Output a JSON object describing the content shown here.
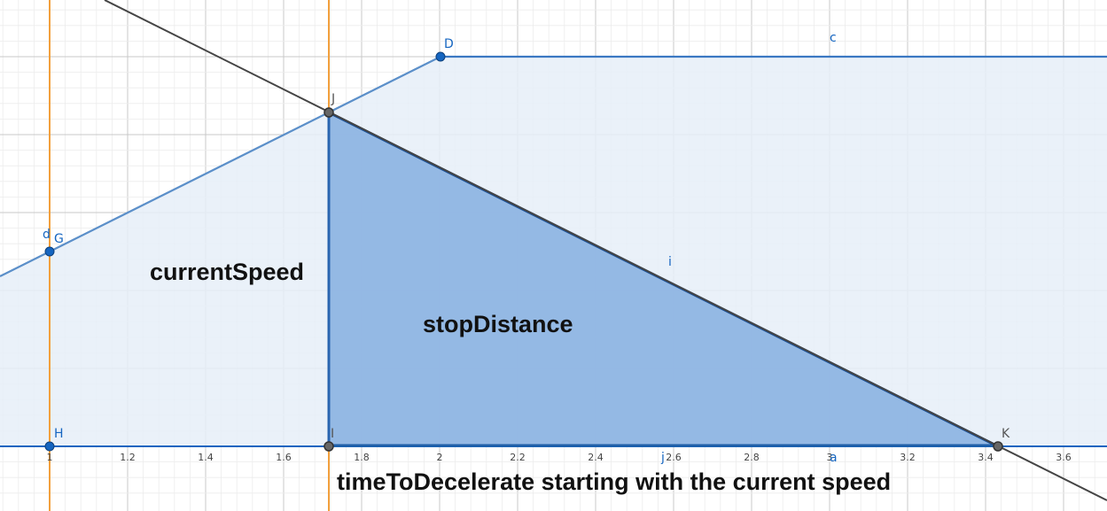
{
  "colors": {
    "accent_blue": "#1565c0",
    "line_blue": "#5b8fc9",
    "fill_light": "#e6eef8",
    "fill_dark": "#8fb5e3",
    "orange": "#f2a03d",
    "black_line": "#444444",
    "grid": "#e4e4e4",
    "grid_major": "#c8c8c8"
  },
  "points": {
    "D": "D",
    "J": "J",
    "G": "G",
    "H": "H",
    "I": "I",
    "K": "K"
  },
  "object_labels": {
    "c": "c",
    "d": "d",
    "i": "i",
    "j": "j",
    "a": "a"
  },
  "annotations": {
    "current_speed": "currentSpeed",
    "stop_distance": "stopDistance",
    "time_to_decelerate": "timeToDecelerate starting with the current speed"
  },
  "axis": {
    "x_ticks": [
      "1",
      "1.2",
      "1.4",
      "1.6",
      "1.8",
      "2",
      "2.2",
      "2.4",
      "2.6",
      "2.8",
      "3",
      "3.2",
      "3.4",
      "3.6"
    ]
  }
}
